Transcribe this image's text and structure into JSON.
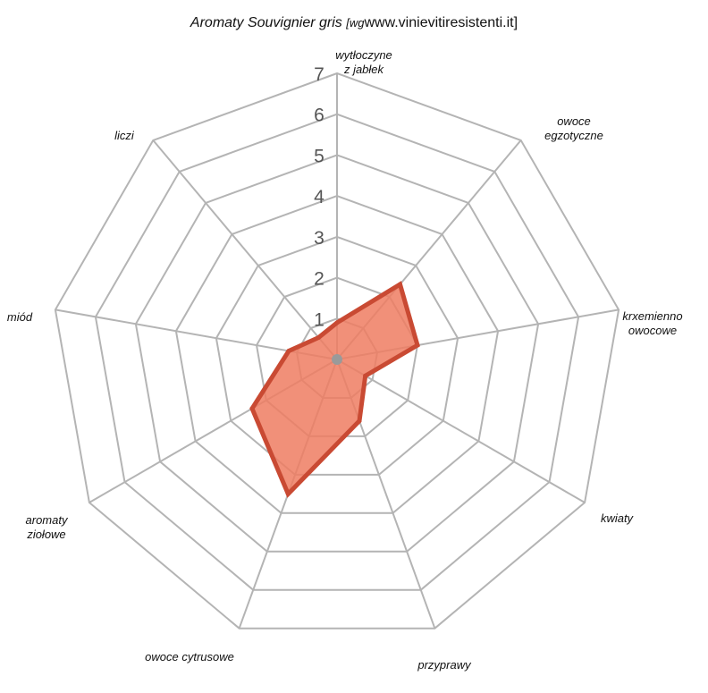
{
  "chart_data": {
    "type": "radar",
    "title": "Aromaty Souvignier gris",
    "title_source_prefix": "[wg",
    "title_source": "www.vinievitiresistenti.it]",
    "categories": [
      "wytłoczyne\nz jabłek",
      "owoce\negzotyczne",
      "krxemienno\nowocowe",
      "kwiaty",
      "przyprawy",
      "owoce cytrusowe",
      "aromaty\nziołowe",
      "miód",
      "liczi"
    ],
    "ticks": [
      "1",
      "2",
      "3",
      "4",
      "5",
      "6",
      "7"
    ],
    "rmax": 7,
    "series": [
      {
        "values": [
          0.9,
          2.4,
          2.0,
          0.8,
          1.6,
          3.5,
          2.4,
          1.2,
          0.7
        ]
      }
    ],
    "colors": {
      "grid": "#b4b4b4",
      "fill": "#ef7c61",
      "stroke": "#c94a33",
      "center": "#9a9a9a"
    },
    "grid": true,
    "legend": "none"
  }
}
